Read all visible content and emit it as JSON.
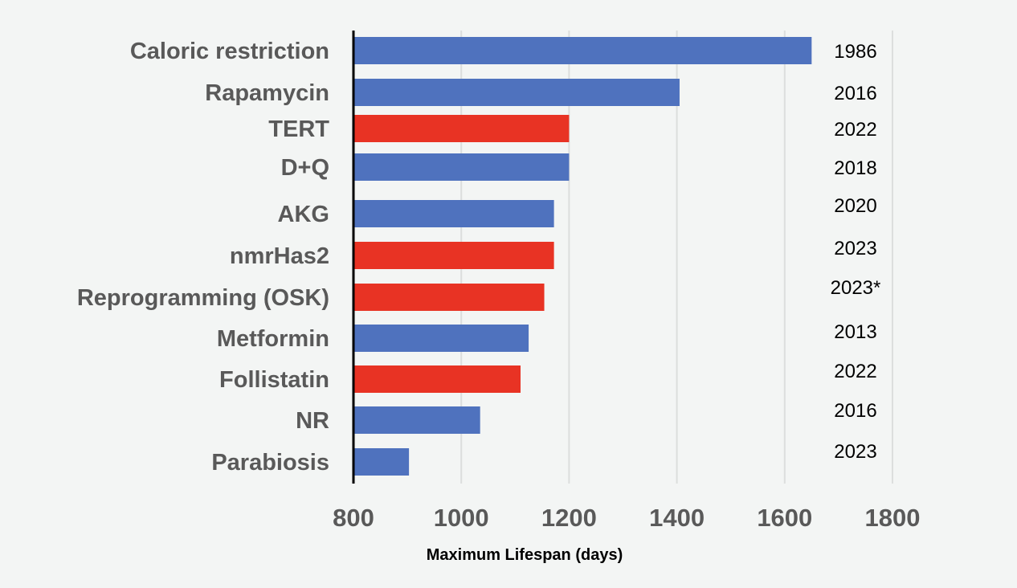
{
  "chart_data": {
    "type": "bar",
    "orientation": "horizontal",
    "title": "",
    "xlabel": "Maximum Lifespan (days)",
    "ylabel": "",
    "xlim": [
      800,
      1800
    ],
    "xticks": [
      "800",
      "1000",
      "1200",
      "1400",
      "1600",
      "1800"
    ],
    "grid": true,
    "categories": [
      "Caloric restriction",
      "Rapamycin",
      "TERT",
      "D+Q",
      "AKG",
      "nmrHas2",
      "Reprogramming (OSK)",
      "Metformin",
      "Follistatin",
      "NR",
      "Parabiosis"
    ],
    "values": [
      1650,
      1405,
      1200,
      1200,
      1172,
      1172,
      1154,
      1125,
      1110,
      1035,
      903
    ],
    "groups": [
      "blue",
      "blue",
      "red",
      "blue",
      "blue",
      "red",
      "red",
      "blue",
      "red",
      "blue",
      "blue"
    ],
    "annotations": [
      "1986",
      "2016",
      "2022",
      "2018",
      "2020",
      "2023",
      "2023*",
      "2013",
      "2022",
      "2016",
      "2023"
    ],
    "colors": {
      "blue": "#4f72be",
      "red": "#e83324"
    }
  }
}
